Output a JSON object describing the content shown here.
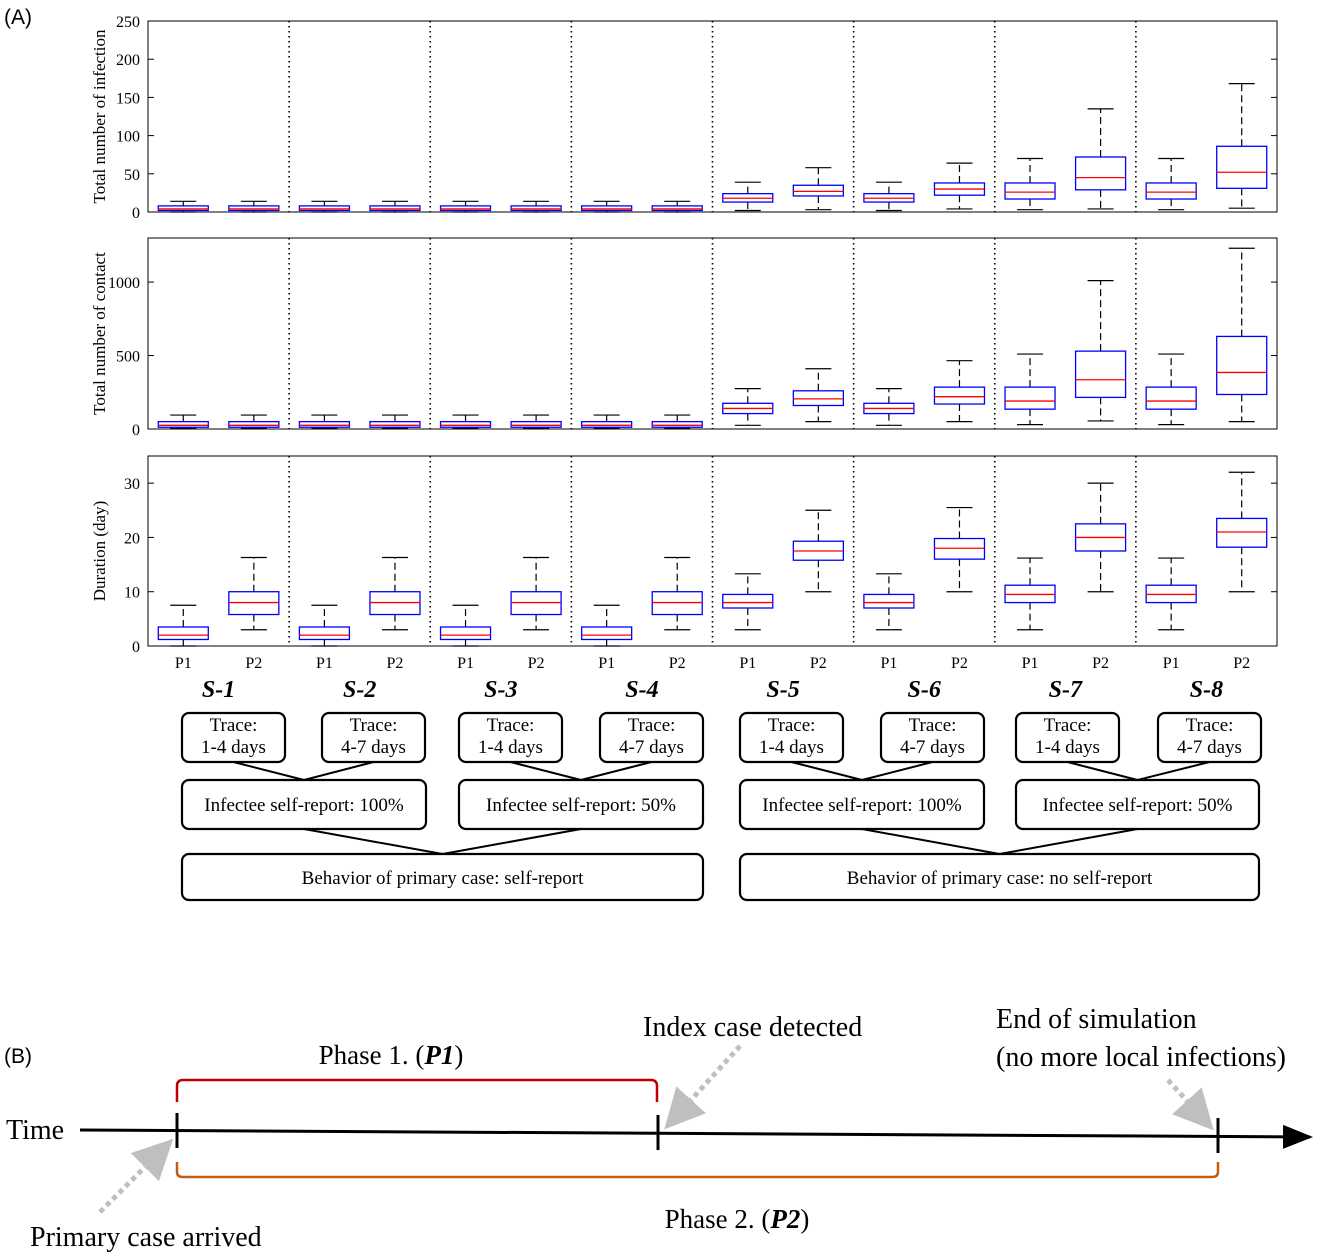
{
  "panel_labels": {
    "a": "(A)",
    "b": "(B)"
  },
  "chart_data": [
    {
      "type": "box",
      "ylabel": "Total number of infection",
      "ylim": [
        0,
        250
      ],
      "yticks": [
        0,
        50,
        100,
        150,
        200,
        250
      ],
      "phases": [
        "P1",
        "P2"
      ],
      "scenarios": [
        "S-1",
        "S-2",
        "S-3",
        "S-4",
        "S-5",
        "S-6",
        "S-7",
        "S-8"
      ],
      "boxes": [
        [
          0,
          2,
          4,
          8,
          14
        ],
        [
          0,
          2,
          4,
          8,
          14
        ],
        [
          0,
          2,
          4,
          8,
          14
        ],
        [
          0,
          2,
          4,
          8,
          14
        ],
        [
          0,
          2,
          4,
          8,
          14
        ],
        [
          0,
          2,
          4,
          8,
          14
        ],
        [
          0,
          2,
          4,
          8,
          14
        ],
        [
          0,
          2,
          4,
          8,
          14
        ],
        [
          2,
          13,
          18,
          24,
          39
        ],
        [
          3,
          21,
          27,
          35,
          58
        ],
        [
          2,
          13,
          18,
          24,
          39
        ],
        [
          4,
          22,
          30,
          38,
          64
        ],
        [
          3,
          17,
          26,
          38,
          70
        ],
        [
          4,
          29,
          45,
          72,
          135
        ],
        [
          3,
          17,
          26,
          38,
          70
        ],
        [
          5,
          31,
          52,
          86,
          168
        ]
      ]
    },
    {
      "type": "box",
      "ylabel": "Total number of contact",
      "ylim": [
        0,
        1300
      ],
      "yticks": [
        0,
        500,
        1000
      ],
      "phases": [
        "P1",
        "P2"
      ],
      "scenarios": [
        "S-1",
        "S-2",
        "S-3",
        "S-4",
        "S-5",
        "S-6",
        "S-7",
        "S-8"
      ],
      "boxes": [
        [
          5,
          12,
          25,
          50,
          95
        ],
        [
          5,
          12,
          25,
          50,
          95
        ],
        [
          5,
          12,
          25,
          50,
          95
        ],
        [
          5,
          12,
          25,
          50,
          95
        ],
        [
          5,
          12,
          25,
          50,
          95
        ],
        [
          5,
          12,
          25,
          50,
          95
        ],
        [
          5,
          12,
          25,
          50,
          95
        ],
        [
          5,
          12,
          25,
          50,
          95
        ],
        [
          25,
          105,
          140,
          175,
          275
        ],
        [
          50,
          160,
          205,
          260,
          410
        ],
        [
          25,
          105,
          140,
          175,
          275
        ],
        [
          50,
          170,
          220,
          285,
          465
        ],
        [
          30,
          135,
          190,
          285,
          510
        ],
        [
          55,
          215,
          335,
          530,
          1010
        ],
        [
          30,
          135,
          190,
          285,
          510
        ],
        [
          50,
          235,
          385,
          630,
          1230
        ]
      ]
    },
    {
      "type": "box",
      "ylabel": "Duration (day)",
      "ylim": [
        0,
        35
      ],
      "yticks": [
        0,
        10,
        20,
        30
      ],
      "phases": [
        "P1",
        "P2"
      ],
      "scenarios": [
        "S-1",
        "S-2",
        "S-3",
        "S-4",
        "S-5",
        "S-6",
        "S-7",
        "S-8"
      ],
      "boxes": [
        [
          0,
          1.2,
          2,
          3.5,
          7.5
        ],
        [
          3,
          5.8,
          8,
          10,
          16.3
        ],
        [
          0,
          1.2,
          2,
          3.5,
          7.5
        ],
        [
          3,
          5.8,
          8,
          10,
          16.3
        ],
        [
          0,
          1.2,
          2,
          3.5,
          7.5
        ],
        [
          3,
          5.8,
          8,
          10,
          16.3
        ],
        [
          0,
          1.2,
          2,
          3.5,
          7.5
        ],
        [
          3,
          5.8,
          8,
          10,
          16.3
        ],
        [
          3,
          7,
          8,
          9.5,
          13.3
        ],
        [
          10,
          15.8,
          17.5,
          19.3,
          25
        ],
        [
          3,
          7,
          8,
          9.5,
          13.3
        ],
        [
          10,
          16,
          18,
          19.8,
          25.5
        ],
        [
          3,
          8,
          9.5,
          11.2,
          16.2
        ],
        [
          10,
          17.5,
          20,
          22.5,
          30
        ],
        [
          3,
          8,
          9.5,
          11.2,
          16.2
        ],
        [
          10,
          18.2,
          21,
          23.5,
          32
        ]
      ]
    }
  ],
  "scenario_tree": {
    "trace_boxes": [
      {
        "line1": "Trace:",
        "line2": "1-4 days"
      },
      {
        "line1": "Trace:",
        "line2": "4-7 days"
      },
      {
        "line1": "Trace:",
        "line2": "1-4 days"
      },
      {
        "line1": "Trace:",
        "line2": "4-7 days"
      },
      {
        "line1": "Trace:",
        "line2": "1-4 days"
      },
      {
        "line1": "Trace:",
        "line2": "4-7 days"
      },
      {
        "line1": "Trace:",
        "line2": "1-4 days"
      },
      {
        "line1": "Trace:",
        "line2": "4-7 days"
      }
    ],
    "report_boxes": [
      "Infectee self-report: 100%",
      "Infectee self-report: 50%",
      "Infectee self-report: 100%",
      "Infectee self-report: 50%"
    ],
    "behavior_boxes": [
      "Behavior of primary case: self-report",
      "Behavior of primary case: no self-report"
    ]
  },
  "timeline": {
    "axis_label": "Time",
    "phase1_prefix": "Phase 1. (",
    "phase1_code": "P1",
    "phase1_suffix": ")",
    "phase2_prefix": "Phase 2. (",
    "phase2_code": "P2",
    "phase2_suffix": ")",
    "index_case": "Index case detected",
    "end_line1": "End of simulation",
    "end_line2": "(no more local infections)",
    "primary_case": "Primary case arrived",
    "colors": {
      "phase1": "#c00000",
      "phase2": "#c55a11",
      "arrow": "#bfbfbf"
    }
  },
  "box_colors": {
    "box": "#0000ff",
    "median": "#ff0000",
    "whisker": "#000000"
  }
}
